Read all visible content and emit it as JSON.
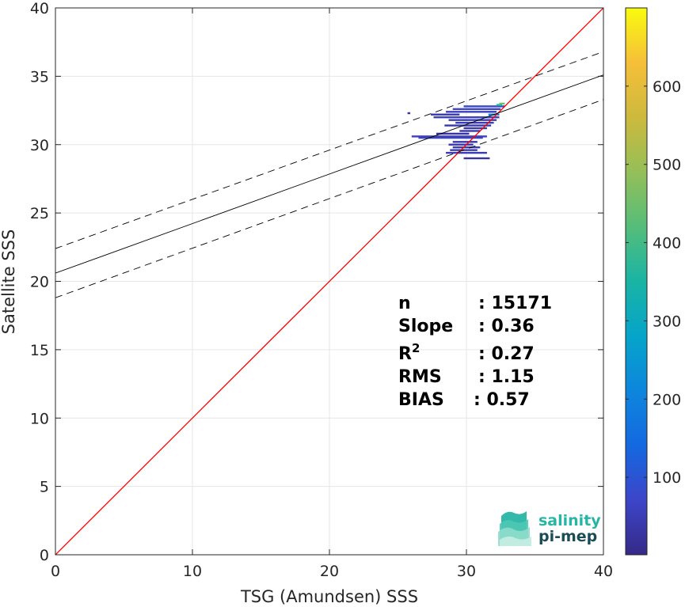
{
  "chart_data": {
    "type": "scatter",
    "subtype": "2d-histogram-density",
    "title": "",
    "xlabel": "TSG (Amundsen) SSS",
    "ylabel": "Satellite SSS",
    "xlim": [
      0,
      40
    ],
    "ylim": [
      0,
      40
    ],
    "xticks": [
      0,
      10,
      20,
      30,
      40
    ],
    "yticks": [
      0,
      5,
      10,
      15,
      20,
      25,
      30,
      35,
      40
    ],
    "grid": true,
    "colorbar": {
      "range": [
        1,
        700
      ],
      "ticks": [
        100,
        200,
        300,
        400,
        500,
        600
      ],
      "colormap": "parula"
    },
    "lines": [
      {
        "kind": "one-to-one",
        "color": "#ff0000",
        "x": [
          0,
          40
        ],
        "y": [
          0,
          40
        ]
      },
      {
        "kind": "regression",
        "color": "#000000",
        "style": "solid",
        "x": [
          0,
          40
        ],
        "y": [
          20.6,
          35.1
        ]
      },
      {
        "kind": "regression-upper",
        "color": "#000000",
        "style": "dashed",
        "x": [
          0,
          40
        ],
        "y": [
          22.4,
          36.8
        ]
      },
      {
        "kind": "regression-lower",
        "color": "#000000",
        "style": "dashed",
        "x": [
          0,
          40
        ],
        "y": [
          18.8,
          33.3
        ]
      }
    ],
    "bins": [
      {
        "x": [
          25.7,
          25.9
        ],
        "y": 32.3,
        "count": 30
      },
      {
        "x": [
          27.4,
          29.5
        ],
        "y": 32.2,
        "count": 40
      },
      {
        "x": [
          28.5,
          32.2
        ],
        "y": 32.4,
        "count": 60
      },
      {
        "x": [
          29.0,
          32.5
        ],
        "y": 32.6,
        "count": 70
      },
      {
        "x": [
          29.8,
          32.8
        ],
        "y": 32.8,
        "count": 80
      },
      {
        "x": [
          27.6,
          32.4
        ],
        "y": 32.0,
        "count": 60
      },
      {
        "x": [
          28.7,
          32.2
        ],
        "y": 31.8,
        "count": 50
      },
      {
        "x": [
          29.2,
          32.0
        ],
        "y": 31.6,
        "count": 50
      },
      {
        "x": [
          28.4,
          31.8
        ],
        "y": 31.4,
        "count": 40
      },
      {
        "x": [
          29.8,
          31.5
        ],
        "y": 31.2,
        "count": 40
      },
      {
        "x": [
          29.5,
          31.0
        ],
        "y": 31.0,
        "count": 40
      },
      {
        "x": [
          27.8,
          30.2
        ],
        "y": 30.8,
        "count": 30
      },
      {
        "x": [
          26.0,
          31.5
        ],
        "y": 30.6,
        "count": 60
      },
      {
        "x": [
          26.5,
          31.2
        ],
        "y": 30.5,
        "count": 60
      },
      {
        "x": [
          29.0,
          30.8
        ],
        "y": 30.2,
        "count": 40
      },
      {
        "x": [
          28.7,
          30.5
        ],
        "y": 30.0,
        "count": 40
      },
      {
        "x": [
          29.0,
          31.0
        ],
        "y": 29.8,
        "count": 50
      },
      {
        "x": [
          28.8,
          30.8
        ],
        "y": 29.6,
        "count": 50
      },
      {
        "x": [
          28.5,
          31.5
        ],
        "y": 29.4,
        "count": 50
      },
      {
        "x": [
          29.8,
          31.7
        ],
        "y": 29.0,
        "count": 30
      },
      {
        "x": [
          32.2,
          32.6
        ],
        "y": 32.9,
        "count": 350
      },
      {
        "x": [
          32.4,
          32.8
        ],
        "y": 33.0,
        "count": 450
      },
      {
        "x": [
          31.6,
          32.4
        ],
        "y": 32.2,
        "count": 200
      }
    ]
  },
  "stats": [
    {
      "key": "n",
      "value": ": 15171"
    },
    {
      "key": "Slope",
      "value": ": 0.36"
    },
    {
      "key": "R",
      "sup": "2",
      "value": ": 0.27"
    },
    {
      "key": "RMS",
      "value": ": 1.15"
    },
    {
      "key": "BIAS",
      "value": ": 0.57"
    }
  ],
  "logo": {
    "line1": "salinity",
    "line2": "pi-mep",
    "color1": "#27b5a4",
    "color2": "#1b4d57"
  }
}
